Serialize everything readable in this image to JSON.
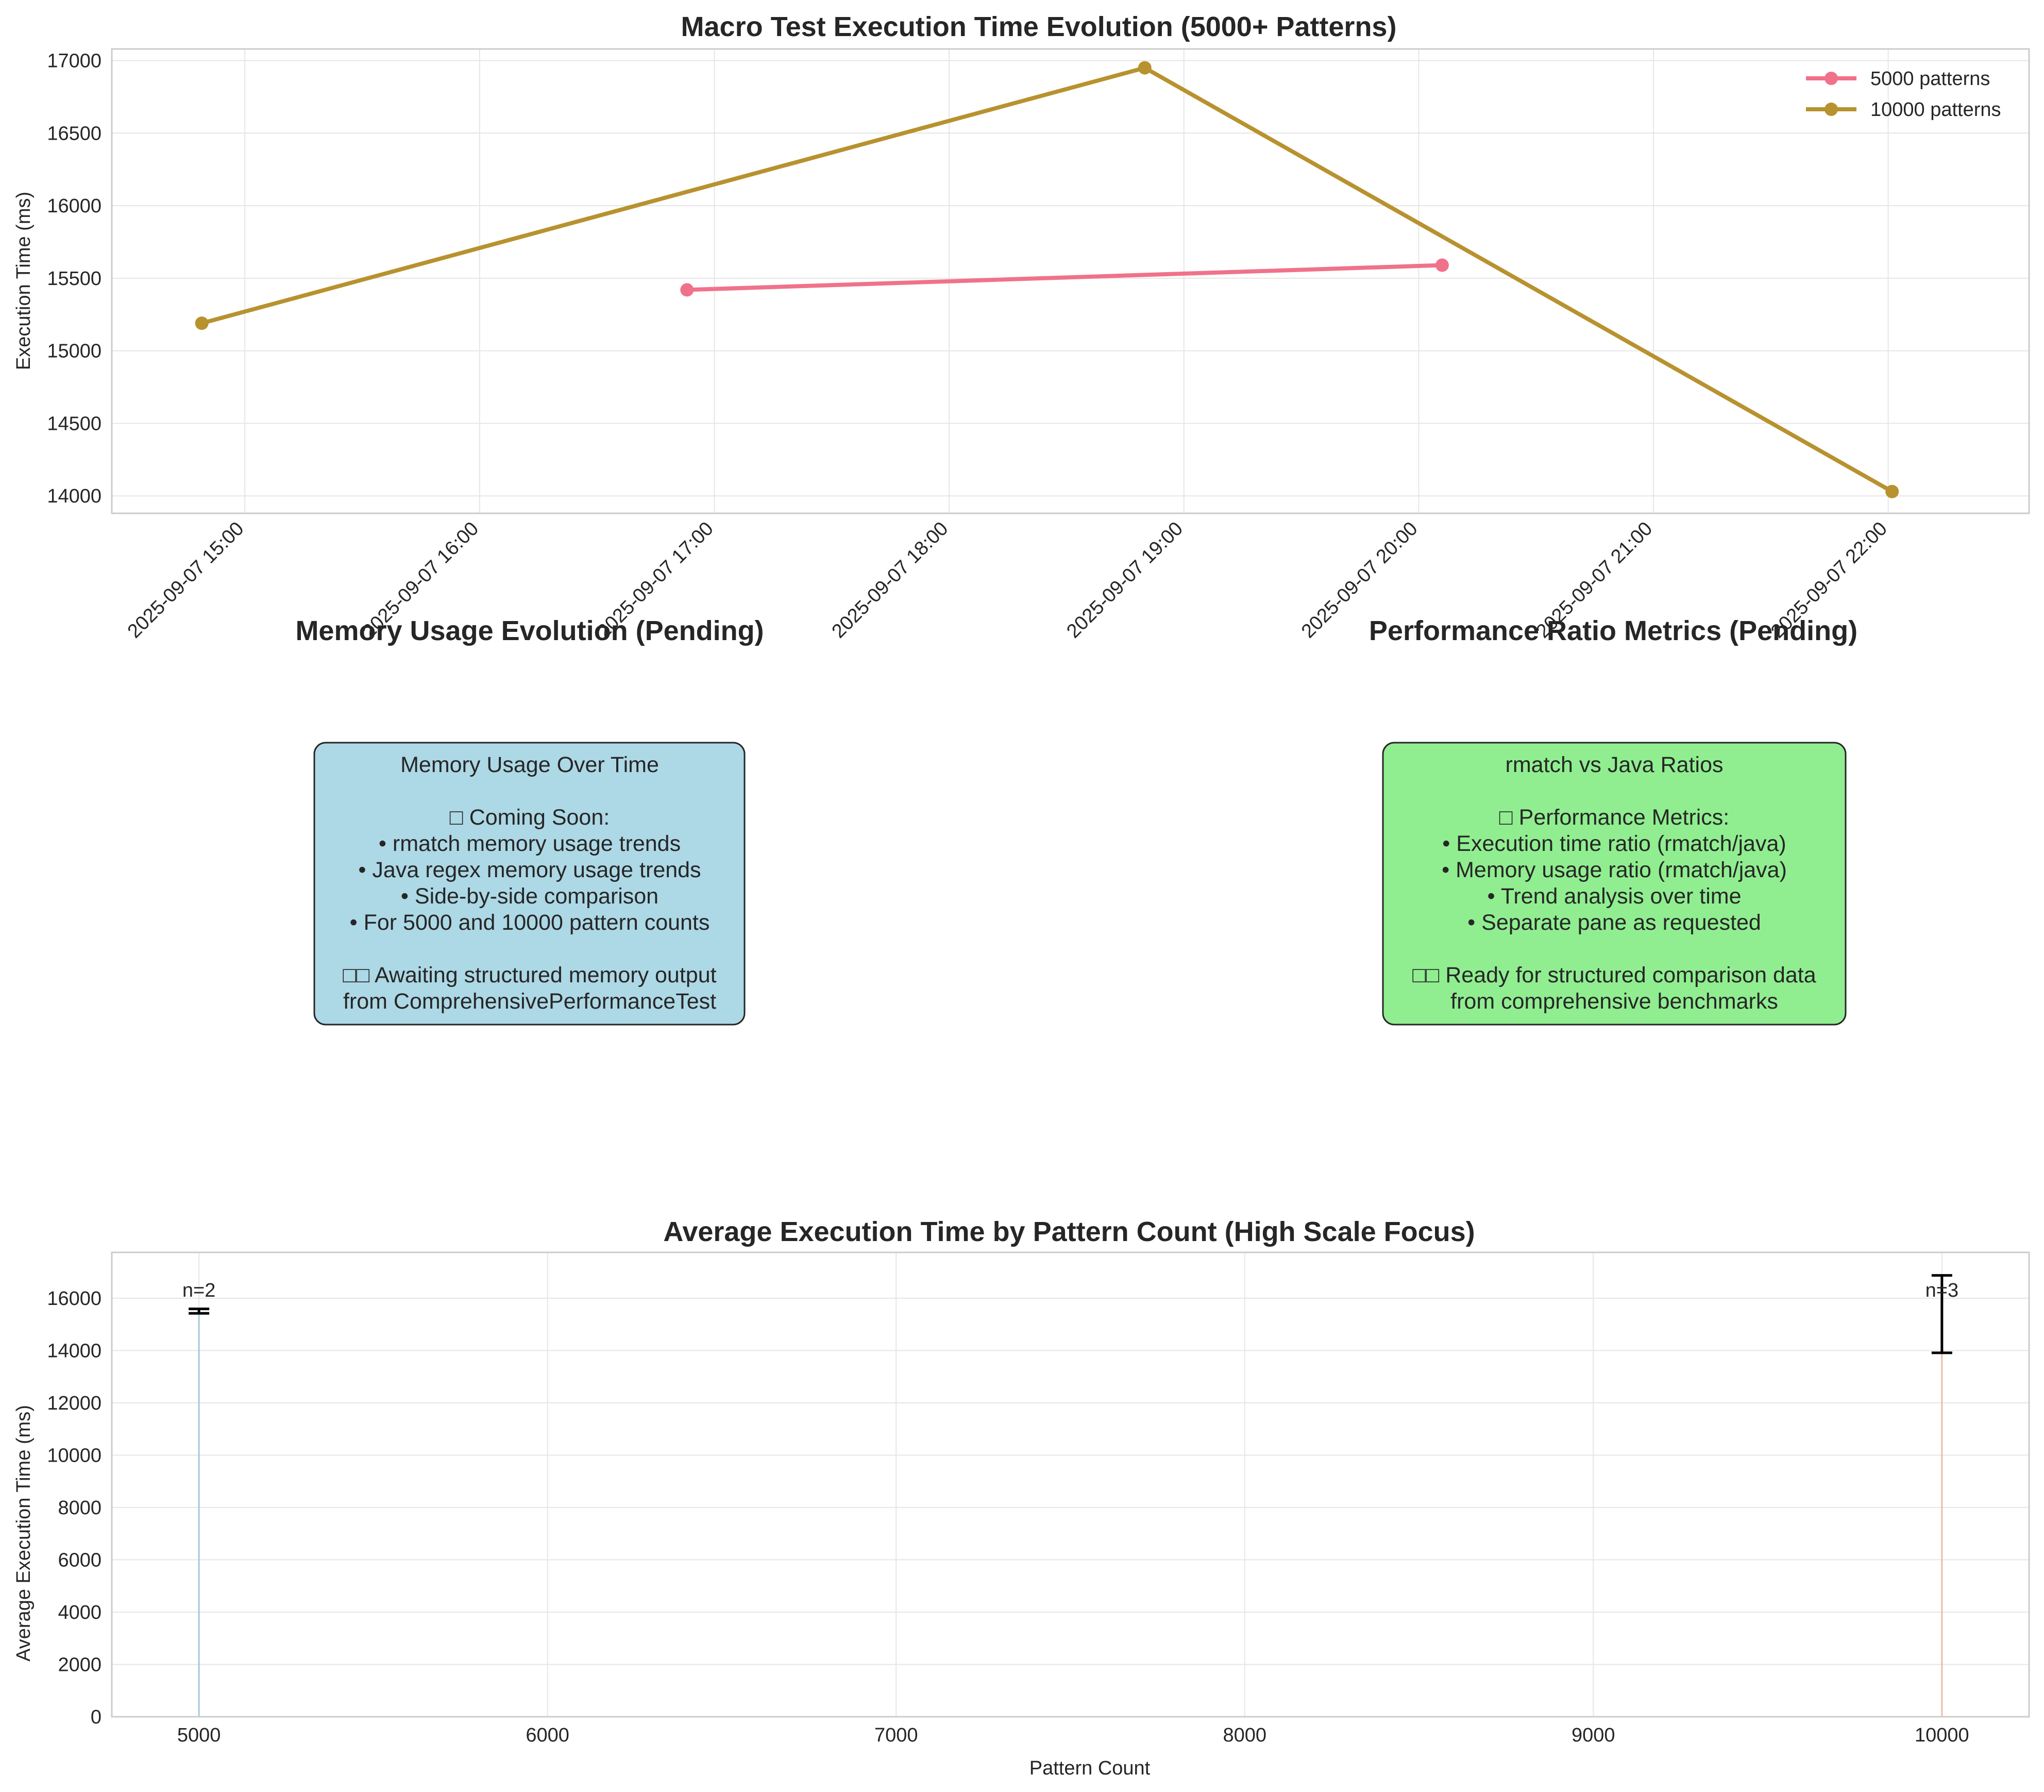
{
  "chart_data": [
    {
      "type": "line",
      "title": "Macro Test Execution Time Evolution (5000+ Patterns)",
      "xlabel": "",
      "ylabel": "Execution Time (ms)",
      "x_type": "datetime",
      "xlim": [
        "2025-09-07 14:26",
        "2025-09-07 22:36"
      ],
      "ylim": [
        13880,
        17080
      ],
      "x_ticks": [
        "2025-09-07 15:00",
        "2025-09-07 16:00",
        "2025-09-07 17:00",
        "2025-09-07 18:00",
        "2025-09-07 19:00",
        "2025-09-07 20:00",
        "2025-09-07 21:00",
        "2025-09-07 22:00"
      ],
      "y_ticks": [
        14000,
        14500,
        15000,
        15500,
        16000,
        16500,
        17000
      ],
      "grid": true,
      "legend_position": "top-right",
      "series": [
        {
          "name": "5000 patterns",
          "color": "#f0728a",
          "x": [
            "2025-09-07 16:53",
            "2025-09-07 20:06"
          ],
          "y": [
            15420,
            15590
          ]
        },
        {
          "name": "10000 patterns",
          "color": "#b8922f",
          "x": [
            "2025-09-07 14:49",
            "2025-09-07 18:50",
            "2025-09-07 22:01"
          ],
          "y": [
            15190,
            16950,
            14030
          ]
        }
      ]
    },
    {
      "type": "text",
      "title": "Memory Usage Evolution (Pending)",
      "box_color": "#add8e6",
      "lines": [
        "Memory Usage Over Time",
        "",
        "□ Coming Soon:",
        "• rmatch memory usage trends",
        "• Java regex memory usage trends",
        "• Side-by-side comparison",
        "• For 5000 and 10000 pattern counts",
        "",
        "□□ Awaiting structured memory output",
        "from ComprehensivePerformanceTest"
      ]
    },
    {
      "type": "text",
      "title": "Performance Ratio Metrics (Pending)",
      "box_color": "#90ee90",
      "lines": [
        "rmatch vs Java Ratios",
        "",
        "□ Performance Metrics:",
        "• Execution time ratio (rmatch/java)",
        "• Memory usage ratio (rmatch/java)",
        "• Trend analysis over time",
        "• Separate pane as requested",
        "",
        "□□ Ready for structured comparison data",
        "from comprehensive benchmarks"
      ]
    },
    {
      "type": "bar",
      "title": "Average Execution Time by Pattern Count (High Scale Focus)",
      "xlabel": "Pattern Count",
      "ylabel": "Average Execution Time (ms)",
      "xlim": [
        4750,
        10250
      ],
      "ylim": [
        0,
        17750
      ],
      "x_ticks": [
        5000,
        6000,
        7000,
        8000,
        9000,
        10000
      ],
      "y_ticks": [
        0,
        2000,
        4000,
        6000,
        8000,
        10000,
        12000,
        14000,
        16000
      ],
      "grid": true,
      "categories": [
        5000,
        10000
      ],
      "values": [
        15505,
        15390
      ],
      "error": [
        85,
        1480
      ],
      "colors": [
        "#a6c8dc",
        "#f5b9a5"
      ],
      "labels": [
        "n=2",
        "n=3"
      ]
    }
  ]
}
